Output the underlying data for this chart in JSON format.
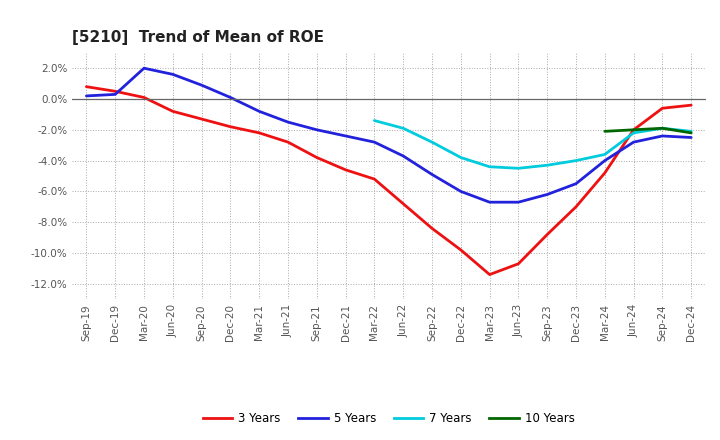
{
  "title": "[5210]  Trend of Mean of ROE",
  "x_labels": [
    "Sep-19",
    "Dec-19",
    "Mar-20",
    "Jun-20",
    "Sep-20",
    "Dec-20",
    "Mar-21",
    "Jun-21",
    "Sep-21",
    "Dec-21",
    "Mar-22",
    "Jun-22",
    "Sep-22",
    "Dec-22",
    "Mar-23",
    "Jun-23",
    "Sep-23",
    "Dec-23",
    "Mar-24",
    "Jun-24",
    "Sep-24",
    "Dec-24"
  ],
  "series": {
    "3 Years": {
      "color": "#EE1111",
      "data_x": [
        0,
        1,
        2,
        3,
        4,
        5,
        6,
        7,
        8,
        9,
        10,
        11,
        12,
        13,
        14,
        15,
        16,
        17,
        18,
        19,
        20,
        21
      ],
      "data_y": [
        0.008,
        0.005,
        0.001,
        -0.008,
        -0.013,
        -0.018,
        -0.022,
        -0.028,
        -0.038,
        -0.046,
        -0.052,
        -0.068,
        -0.084,
        -0.098,
        -0.114,
        -0.107,
        -0.088,
        -0.07,
        -0.048,
        -0.02,
        -0.006,
        -0.004
      ]
    },
    "5 Years": {
      "color": "#2222DD",
      "data_x": [
        0,
        1,
        2,
        3,
        4,
        5,
        6,
        7,
        8,
        9,
        10,
        11,
        12,
        13,
        14,
        15,
        16,
        17,
        18,
        19,
        20,
        21
      ],
      "data_y": [
        0.002,
        0.003,
        0.02,
        0.016,
        0.009,
        0.001,
        -0.008,
        -0.015,
        -0.02,
        -0.024,
        -0.028,
        -0.037,
        -0.049,
        -0.06,
        -0.067,
        -0.067,
        -0.062,
        -0.055,
        -0.04,
        -0.028,
        -0.024,
        -0.025
      ]
    },
    "7 Years": {
      "color": "#00CCDD",
      "data_x": [
        10,
        11,
        12,
        13,
        14,
        15,
        16,
        17,
        18,
        19,
        20,
        21
      ],
      "data_y": [
        -0.014,
        -0.019,
        -0.028,
        -0.038,
        -0.044,
        -0.045,
        -0.043,
        -0.04,
        -0.036,
        -0.022,
        -0.019,
        -0.021
      ]
    },
    "10 Years": {
      "color": "#006600",
      "data_x": [
        18,
        19,
        20,
        21
      ],
      "data_y": [
        -0.021,
        -0.02,
        -0.019,
        -0.022
      ]
    }
  },
  "ylim": [
    -0.13,
    0.03
  ],
  "yticks": [
    0.02,
    0.0,
    -0.02,
    -0.04,
    -0.06,
    -0.08,
    -0.1,
    -0.12
  ],
  "background_color": "#FFFFFF",
  "grid_color": "#AAAAAA",
  "title_fontsize": 11,
  "axis_fontsize": 7.5
}
